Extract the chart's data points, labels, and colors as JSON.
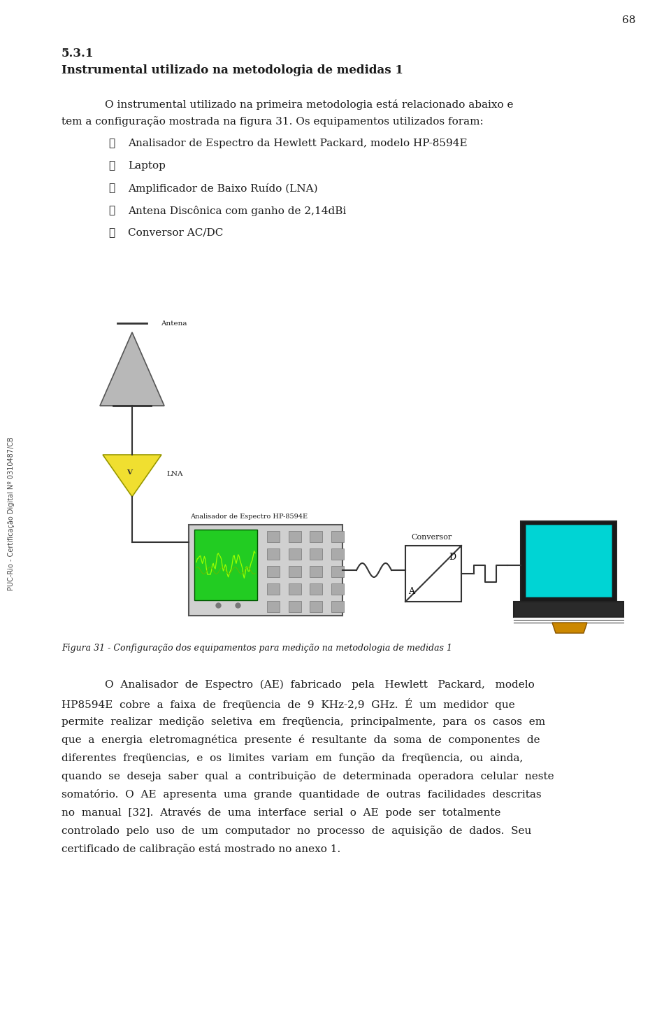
{
  "page_number": "68",
  "section_number": "5.3.1",
  "section_title": "Instrumental utilizado na metodologia de medidas 1",
  "para1_line1": "O instrumental utilizado na primeira metodologia está relacionado abaixo e",
  "para1_line2": "tem a configuração mostrada na figura 31. Os equipamentos utilizados foram:",
  "bullet_items": [
    "Analisador de Espectro da Hewlett Packard, modelo HP-8594E",
    "Laptop",
    "Amplificador de Baixo Ruído (LNA)",
    "Antena Discônica com ganho de 2,14dBi",
    "Conversor AC/DC"
  ],
  "figure_caption": "Figura 31 - Configuração dos equipamentos para medição na metodologia de medidas 1",
  "para2_lines": [
    "O  Analisador  de  Espectro  (AE)  fabricado   pela   Hewlett   Packard,   modelo",
    "HP8594E  cobre  a  faixa  de  freqüencia  de  9  KHz-2,9  GHz.  É  um  medidor  que",
    "permite  realizar  medição  seletiva  em  freqüencia,  principalmente,  para  os  casos  em",
    "que  a  energia  eletromagnética  presente  é  resultante  da  soma  de  componentes  de",
    "diferentes  freqüencias,  e  os  limites  variam  em  função  da  freqüencia,  ou  ainda,",
    "quando  se  deseja  saber  qual  a  contribuição  de  determinada  operadora  celular  neste",
    "somatório.  O  AE  apresenta  uma  grande  quantidade  de  outras  facilidades  descritas",
    "no  manual  [32].  Através  de  uma  interface  serial  o  AE  pode  ser  totalmente",
    "controlado  pelo  uso  de  um  computador  no  processo  de  aquisição  de  dados.  Seu",
    "certificado de calibração está mostrado no anexo 1."
  ],
  "side_text": "PUC-Rio - Certificação Digital Nº 0310487/CB",
  "bg_color": "#ffffff",
  "text_color": "#1a1a1a",
  "checkmark": "✓"
}
